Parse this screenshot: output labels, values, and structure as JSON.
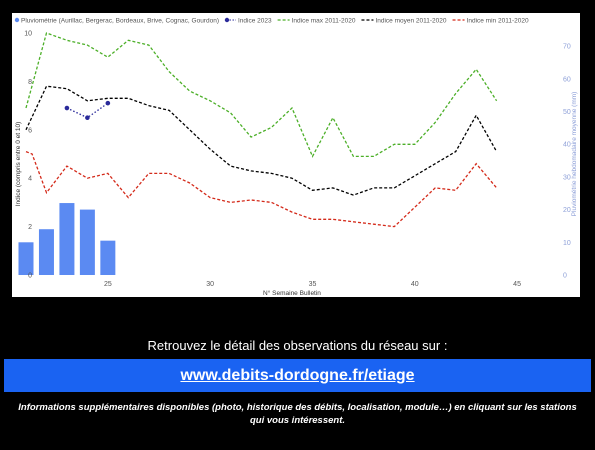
{
  "chart_data": {
    "type": "line",
    "legend": {
      "placement": "top-left",
      "entries": [
        {
          "name": "Pluviométrie (Aurillac, Bergerac, Bordeaux, Brive, Cognac, Gourdon)",
          "color": "#5b8af2",
          "marker": "dot"
        },
        {
          "name": "Indice 2023",
          "color": "#2a2a9a",
          "marker": "dot-dotted"
        },
        {
          "name": "Indice max 2011-2020",
          "color": "#4caf28",
          "marker": "dashed"
        },
        {
          "name": "Indice moyen 2011-2020",
          "color": "#000000",
          "marker": "dashed"
        },
        {
          "name": "Indice min 2011-2020",
          "color": "#d42a1a",
          "marker": "dashed"
        }
      ]
    },
    "xlabel": "N° Semaine Bulletin",
    "ylabel": "Indice (compris entre 0 et 10)",
    "y2label": "Pluviométrie hebdomadaire moyenne (mm)",
    "xlim": [
      21,
      47
    ],
    "ylim": [
      0,
      10
    ],
    "y2lim": [
      0,
      74
    ],
    "xticks": [
      25,
      30,
      35,
      40,
      45
    ],
    "yticks": [
      0,
      2,
      4,
      6,
      8,
      10
    ],
    "y2ticks": [
      0,
      10,
      20,
      30,
      40,
      50,
      60,
      70
    ],
    "grid": false,
    "bars": {
      "name": "Pluviométrie (Aurillac, Bergerac, Bordeaux, Brive, Cognac, Gourdon)",
      "axis": "right",
      "color": "#5b8af2",
      "x": [
        21,
        22,
        23,
        24,
        25
      ],
      "values": [
        10,
        14,
        22,
        20,
        10.5
      ]
    },
    "series": [
      {
        "name": "Indice max 2011-2020",
        "color": "#4caf28",
        "style": "dashed",
        "x": [
          21,
          22,
          23,
          24,
          25,
          26,
          27,
          28,
          29,
          30,
          31,
          32,
          33,
          34,
          35,
          36,
          37,
          38,
          39,
          40,
          41,
          42,
          43,
          44
        ],
        "y": [
          6.9,
          10.0,
          9.7,
          9.5,
          9.0,
          9.7,
          9.5,
          8.4,
          7.6,
          7.2,
          6.7,
          5.7,
          6.1,
          6.9,
          4.9,
          6.5,
          4.9,
          4.9,
          5.4,
          5.4,
          6.3,
          7.5,
          8.5,
          7.2
        ]
      },
      {
        "name": "Indice moyen 2011-2020",
        "color": "#000000",
        "style": "dashed",
        "x": [
          21,
          22,
          23,
          24,
          25,
          26,
          27,
          28,
          29,
          30,
          31,
          32,
          33,
          34,
          35,
          36,
          37,
          38,
          39,
          40,
          41,
          42,
          43,
          44
        ],
        "y": [
          6.0,
          7.8,
          7.7,
          7.2,
          7.3,
          7.3,
          7.0,
          6.8,
          6.0,
          5.2,
          4.5,
          4.3,
          4.2,
          4.0,
          3.5,
          3.6,
          3.3,
          3.6,
          3.6,
          4.1,
          4.6,
          5.1,
          6.6,
          5.1
        ]
      },
      {
        "name": "Indice min 2011-2020",
        "color": "#d42a1a",
        "style": "dashed",
        "x": [
          21,
          21.3,
          22,
          23,
          24,
          25,
          26,
          27,
          28,
          29,
          30,
          31,
          32,
          33,
          34,
          35,
          36,
          37,
          38,
          39,
          40,
          41,
          42,
          43,
          44
        ],
        "y": [
          5.1,
          5.0,
          3.4,
          4.5,
          4.0,
          4.2,
          3.2,
          4.2,
          4.2,
          3.8,
          3.2,
          3.0,
          3.1,
          3.0,
          2.6,
          2.3,
          2.3,
          2.2,
          2.1,
          2.0,
          2.8,
          3.6,
          3.5,
          4.6,
          3.6
        ]
      },
      {
        "name": "Indice 2023",
        "color": "#2a2a9a",
        "style": "dotted",
        "markers": true,
        "x": [
          23,
          24,
          25
        ],
        "y": [
          6.9,
          6.5,
          7.1
        ]
      }
    ]
  },
  "footer": {
    "cta_text": "Retrouvez le détail des observations du réseau sur :",
    "link_text": "www.debits-dordogne.fr/etiage",
    "info_text": "Informations supplémentaires disponibles (photo, historique des débits, localisation, module…) en cliquant sur les stations qui vous intéressent."
  }
}
